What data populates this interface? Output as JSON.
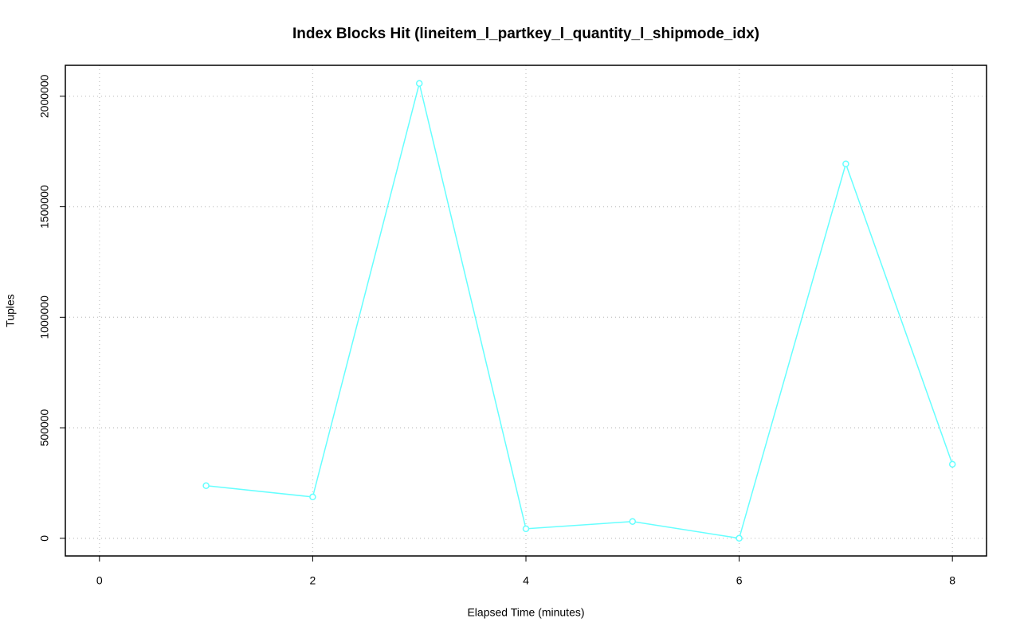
{
  "chart_data": {
    "type": "line",
    "title": "Index Blocks Hit (lineitem_l_partkey_l_quantity_l_shipmode_idx)",
    "x_label": "Elapsed Time (minutes)",
    "y_label": "Tuples",
    "x": [
      1,
      2,
      3,
      4,
      5,
      6,
      7,
      8
    ],
    "series": [
      {
        "color": "#66ffff",
        "values": [
          238000,
          187000,
          2058000,
          43000,
          76000,
          0,
          1694000,
          335000
        ]
      }
    ],
    "xlim": [
      -0.32,
      8.32
    ],
    "ylim": [
      -80000,
      2140000
    ],
    "xticks": [
      0,
      2,
      4,
      6,
      8
    ],
    "yticks": [
      0,
      500000,
      1000000,
      1500000,
      2000000
    ],
    "grid": true
  }
}
